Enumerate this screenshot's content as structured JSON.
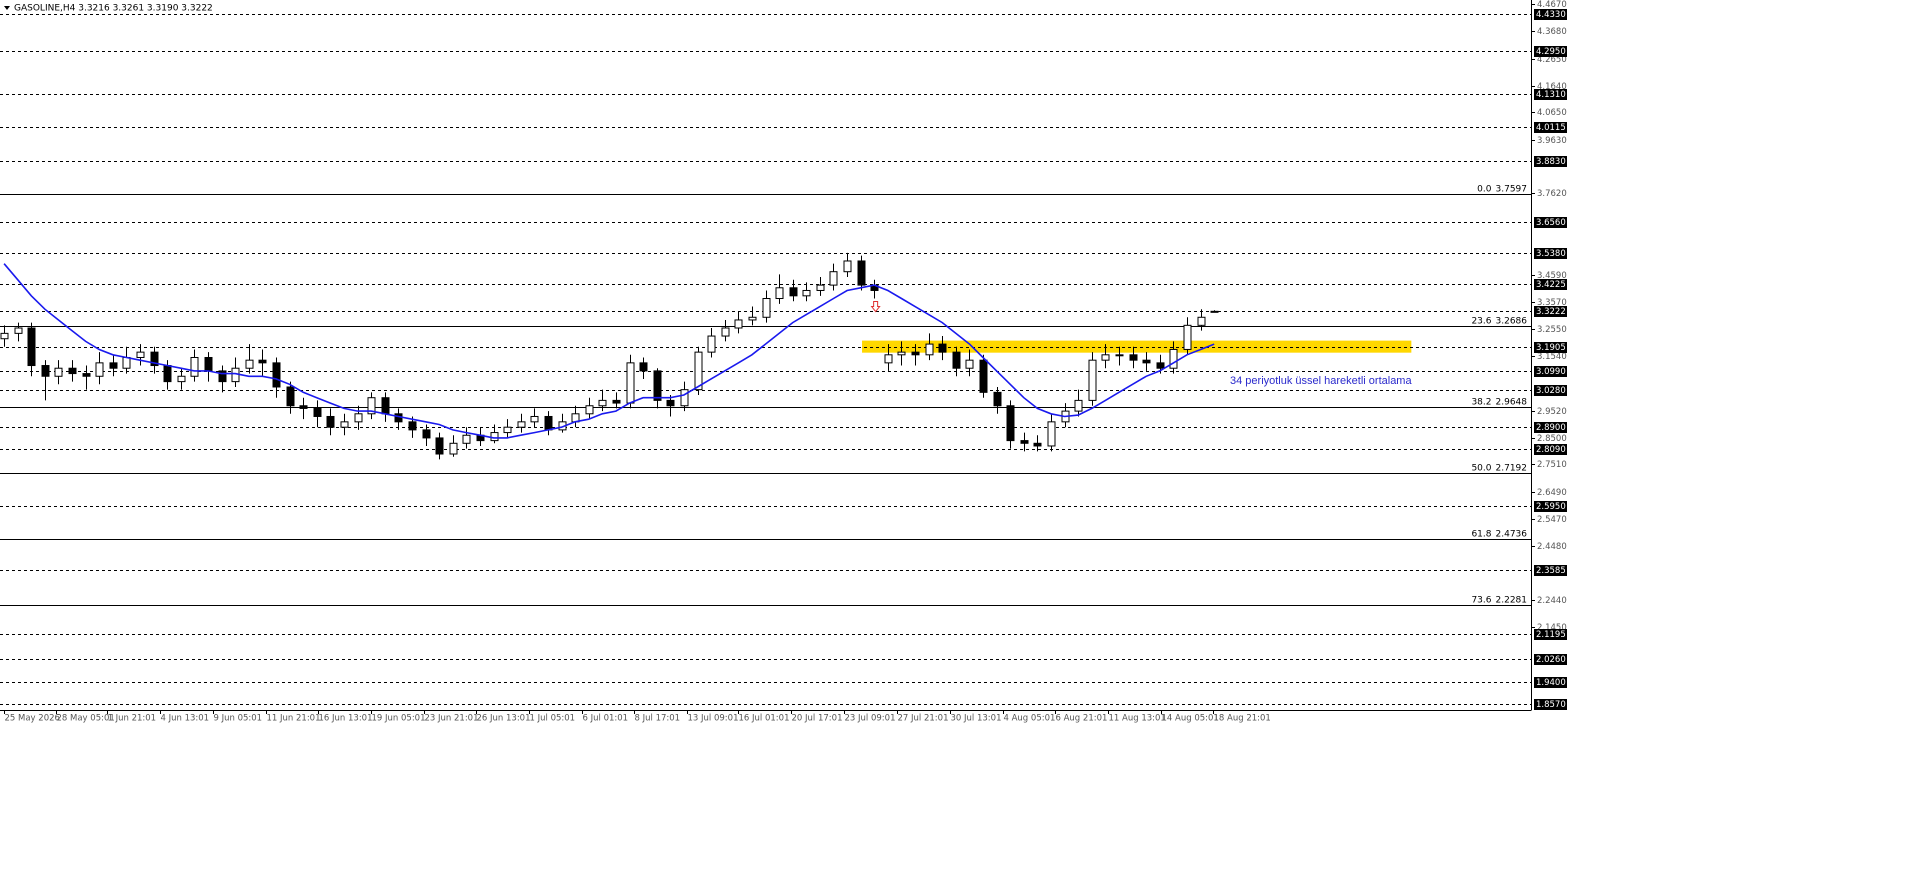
{
  "chart_data": {
    "type": "candlestick",
    "title": "GASOLINE,H4  3.3216 3.3261 3.3190 3.3222",
    "annotation": "34 periyotluk üssel hareketli ortalama",
    "xlim": [
      -0.3,
      112.3
    ],
    "ylim": [
      1.8352,
      4.4834
    ],
    "xticks": [
      {
        "value": 0,
        "label": "25 May 2026"
      },
      {
        "value": 3.8,
        "label": "28 May 05:01"
      },
      {
        "value": 7.6,
        "label": "1 Jun 21:01"
      },
      {
        "value": 11.5,
        "label": "4 Jun 13:01"
      },
      {
        "value": 15.4,
        "label": "9 Jun 05:01"
      },
      {
        "value": 19.3,
        "label": "11 Jun 21:01"
      },
      {
        "value": 23.1,
        "label": "16 Jun 13:01"
      },
      {
        "value": 27,
        "label": "19 Jun 05:01"
      },
      {
        "value": 30.9,
        "label": "23 Jun 21:01"
      },
      {
        "value": 34.7,
        "label": "26 Jun 13:01"
      },
      {
        "value": 38.6,
        "label": "1 Jul 05:01"
      },
      {
        "value": 42.5,
        "label": "6 Jul 01:01"
      },
      {
        "value": 46.3,
        "label": "8 Jul 17:01"
      },
      {
        "value": 50.2,
        "label": "13 Jul 09:01"
      },
      {
        "value": 54,
        "label": "16 Jul 01:01"
      },
      {
        "value": 57.9,
        "label": "20 Jul 17:01"
      },
      {
        "value": 61.8,
        "label": "23 Jul 09:01"
      },
      {
        "value": 65.7,
        "label": "27 Jul 21:01"
      },
      {
        "value": 69.6,
        "label": "30 Jul 13:01"
      },
      {
        "value": 73.5,
        "label": "4 Aug 05:01"
      },
      {
        "value": 77.3,
        "label": "6 Aug 21:01"
      },
      {
        "value": 81.2,
        "label": "11 Aug 13:01"
      },
      {
        "value": 85.1,
        "label": "14 Aug 05:01"
      },
      {
        "value": 88.9,
        "label": "18 Aug 21:01"
      }
    ],
    "yticks": [
      {
        "value": 4.467,
        "label": "4.4670"
      },
      {
        "value": 4.368,
        "label": "4.3680"
      },
      {
        "value": 4.265,
        "label": "4.2650"
      },
      {
        "value": 4.164,
        "label": "4.1640"
      },
      {
        "value": 4.065,
        "label": "4.0650"
      },
      {
        "value": 3.963,
        "label": "3.9630"
      },
      {
        "value": 3.762,
        "label": "3.7620"
      },
      {
        "value": 3.459,
        "label": "3.4590"
      },
      {
        "value": 3.357,
        "label": "3.3570"
      },
      {
        "value": 3.255,
        "label": "3.2550"
      },
      {
        "value": 3.154,
        "label": "3.1540"
      },
      {
        "value": 2.952,
        "label": "2.9520"
      },
      {
        "value": 2.85,
        "label": "2.8500"
      },
      {
        "value": 2.751,
        "label": "2.7510"
      },
      {
        "value": 2.649,
        "label": "2.6490"
      },
      {
        "value": 2.547,
        "label": "2.5470"
      },
      {
        "value": 2.448,
        "label": "2.4480"
      },
      {
        "value": 2.244,
        "label": "2.2440"
      },
      {
        "value": 2.145,
        "label": "2.1450"
      }
    ],
    "levels": [
      {
        "value": 4.433,
        "label": "4.4330"
      },
      {
        "value": 4.295,
        "label": "4.2950"
      },
      {
        "value": 4.131,
        "label": "4.1310"
      },
      4.0115,
      {
        "value": 3.883,
        "label": "3.8830"
      },
      {
        "value": 3.656,
        "label": "3.6560"
      },
      {
        "value": 3.538,
        "label": "3.5380"
      },
      3.4225,
      3.3222,
      3.1905,
      {
        "value": 3.099,
        "label": "3.0990"
      },
      {
        "value": 3.028,
        "label": "3.0280"
      },
      {
        "value": 2.89,
        "label": "2.8900"
      },
      {
        "value": 2.809,
        "label": "2.8090"
      },
      {
        "value": 2.595,
        "label": "2.5950"
      },
      2.3585,
      2.1195,
      {
        "value": 2.026,
        "label": "2.0260"
      },
      {
        "value": 1.94,
        "label": "1.9400"
      },
      {
        "value": 1.857,
        "label": "1.8570"
      }
    ],
    "fib": {
      "levels": [
        "0.0",
        "23.6",
        "38.2",
        "50.0",
        "61.8",
        "73.6"
      ],
      "values": [
        3.7597,
        3.2686,
        2.9648,
        2.7192,
        2.4736,
        2.2281
      ]
    },
    "zone": {
      "x": [
        63.1,
        103.5
      ],
      "y": [
        3.168,
        3.213
      ],
      "color": "#ffd700"
    },
    "signal": {
      "x": 64.1,
      "y": 3.34,
      "color": "#e03030"
    },
    "up_color": "#ffffff",
    "down_color": "#000000",
    "wick_color": "#000000",
    "open": [
      3.22,
      3.24,
      3.26,
      3.12,
      3.08,
      3.11,
      3.09,
      3.08,
      3.13,
      3.11,
      3.15,
      3.17,
      3.12,
      3.06,
      3.08,
      3.15,
      3.1,
      3.06,
      3.11,
      3.14,
      3.13,
      3.04,
      2.97,
      2.96,
      2.93,
      2.89,
      2.91,
      2.94,
      3.0,
      2.94,
      2.91,
      2.88,
      2.85,
      2.79,
      2.83,
      2.86,
      2.84,
      2.87,
      2.89,
      2.91,
      2.93,
      2.88,
      2.91,
      2.94,
      2.97,
      2.99,
      2.98,
      3.13,
      3.1,
      2.99,
      2.97,
      3.03,
      3.17,
      3.23,
      3.26,
      3.29,
      3.3,
      3.37,
      3.41,
      3.38,
      3.4,
      3.42,
      3.47,
      3.51,
      3.42,
      3.13,
      3.16,
      3.17,
      3.16,
      3.2,
      3.17,
      3.11,
      3.14,
      3.02,
      2.97,
      2.84,
      2.83,
      2.82,
      2.91,
      2.95,
      2.99,
      3.14,
      3.16,
      3.16,
      3.14,
      3.13,
      3.11,
      3.18,
      3.27,
      3.3216
    ],
    "high": [
      3.27,
      3.28,
      3.28,
      3.14,
      3.14,
      3.14,
      3.12,
      3.17,
      3.16,
      3.19,
      3.2,
      3.19,
      3.14,
      3.11,
      3.18,
      3.17,
      3.12,
      3.15,
      3.2,
      3.18,
      3.15,
      3.06,
      3.0,
      2.99,
      2.96,
      2.94,
      2.97,
      3.02,
      3.02,
      2.96,
      2.93,
      2.9,
      2.87,
      2.86,
      2.89,
      2.89,
      2.9,
      2.92,
      2.94,
      2.96,
      2.95,
      2.94,
      2.97,
      3.0,
      3.03,
      3.02,
      3.16,
      3.15,
      3.11,
      3.01,
      3.06,
      3.19,
      3.26,
      3.29,
      3.32,
      3.34,
      3.4,
      3.46,
      3.44,
      3.43,
      3.45,
      3.5,
      3.54,
      3.53,
      3.44,
      3.2,
      3.21,
      3.2,
      3.24,
      3.23,
      3.19,
      3.18,
      3.16,
      3.04,
      2.99,
      2.87,
      2.86,
      2.94,
      2.98,
      3.03,
      3.17,
      3.2,
      3.19,
      3.19,
      3.17,
      3.16,
      3.21,
      3.3,
      3.33,
      3.3261
    ],
    "low": [
      3.19,
      3.21,
      3.08,
      2.99,
      3.05,
      3.06,
      3.03,
      3.05,
      3.08,
      3.09,
      3.12,
      3.09,
      3.03,
      3.03,
      3.06,
      3.06,
      3.02,
      3.04,
      3.09,
      3.08,
      3.0,
      2.94,
      2.92,
      2.89,
      2.86,
      2.86,
      2.88,
      2.92,
      2.91,
      2.88,
      2.85,
      2.82,
      2.77,
      2.78,
      2.81,
      2.82,
      2.83,
      2.85,
      2.87,
      2.89,
      2.86,
      2.87,
      2.89,
      2.92,
      2.95,
      2.96,
      2.96,
      3.07,
      2.96,
      2.93,
      2.95,
      3.01,
      3.15,
      3.21,
      3.24,
      3.27,
      3.28,
      3.35,
      3.36,
      3.36,
      3.38,
      3.4,
      3.45,
      3.4,
      3.37,
      3.1,
      3.12,
      3.12,
      3.14,
      3.14,
      3.08,
      3.08,
      3.0,
      2.94,
      2.81,
      2.8,
      2.8,
      2.8,
      2.89,
      2.93,
      2.97,
      3.11,
      3.12,
      3.11,
      3.1,
      3.09,
      3.09,
      3.16,
      3.25,
      3.319
    ],
    "close": [
      3.24,
      3.26,
      3.12,
      3.08,
      3.11,
      3.09,
      3.08,
      3.13,
      3.11,
      3.15,
      3.17,
      3.12,
      3.06,
      3.08,
      3.15,
      3.1,
      3.06,
      3.11,
      3.14,
      3.13,
      3.04,
      2.97,
      2.96,
      2.93,
      2.89,
      2.91,
      2.94,
      3.0,
      2.94,
      2.91,
      2.88,
      2.85,
      2.79,
      2.83,
      2.86,
      2.84,
      2.87,
      2.89,
      2.91,
      2.93,
      2.88,
      2.91,
      2.94,
      2.97,
      2.99,
      2.98,
      3.13,
      3.1,
      2.99,
      2.97,
      3.03,
      3.17,
      3.23,
      3.26,
      3.29,
      3.3,
      3.37,
      3.41,
      3.38,
      3.4,
      3.42,
      3.47,
      3.51,
      3.42,
      3.4,
      3.16,
      3.17,
      3.16,
      3.2,
      3.17,
      3.11,
      3.14,
      3.02,
      2.97,
      2.84,
      2.83,
      2.82,
      2.91,
      2.95,
      2.99,
      3.14,
      3.16,
      3.16,
      3.14,
      3.13,
      3.11,
      3.18,
      3.27,
      3.3,
      3.3222
    ],
    "ema": {
      "color": "#1a1aee",
      "values": [
        3.5,
        3.44,
        3.38,
        3.33,
        3.29,
        3.25,
        3.21,
        3.18,
        3.16,
        3.15,
        3.14,
        3.13,
        3.12,
        3.11,
        3.1,
        3.1,
        3.09,
        3.09,
        3.08,
        3.08,
        3.07,
        3.05,
        3.02,
        3.0,
        2.98,
        2.96,
        2.95,
        2.95,
        2.94,
        2.93,
        2.92,
        2.91,
        2.9,
        2.88,
        2.87,
        2.86,
        2.85,
        2.85,
        2.86,
        2.87,
        2.88,
        2.89,
        2.91,
        2.92,
        2.94,
        2.95,
        2.98,
        3.0,
        3.0,
        3.0,
        3.01,
        3.04,
        3.07,
        3.1,
        3.13,
        3.16,
        3.2,
        3.24,
        3.28,
        3.31,
        3.34,
        3.37,
        3.4,
        3.41,
        3.42,
        3.4,
        3.37,
        3.34,
        3.31,
        3.28,
        3.24,
        3.2,
        3.15,
        3.1,
        3.05,
        3.0,
        2.96,
        2.94,
        2.93,
        2.935,
        2.96,
        2.99,
        3.02,
        3.05,
        3.08,
        3.1,
        3.13,
        3.16,
        3.18,
        3.2
      ]
    }
  }
}
